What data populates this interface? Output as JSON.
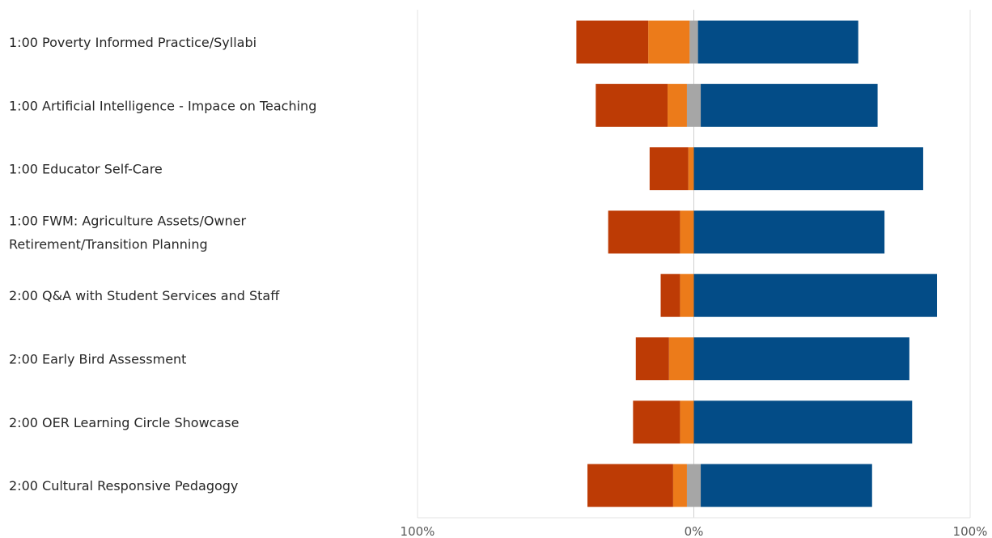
{
  "chart_data": {
    "type": "bar",
    "orientation": "horizontal",
    "stacked": true,
    "diverging": true,
    "categories": [
      [
        "1:00  Poverty Informed Practice/Syllabi"
      ],
      [
        "1:00 Artificial Intelligence - Impace on Teaching"
      ],
      [
        "1:00 Educator Self-Care"
      ],
      [
        "1:00 FWM:  Agriculture Assets/Owner",
        "Retirement/Transition Planning"
      ],
      [
        "2:00 Q&A with Student Services and Staff"
      ],
      [
        "2:00 Early Bird Assessment"
      ],
      [
        "2:00 OER Learning Circle Showcase"
      ],
      [
        "2:00 Cultural Responsive Pedagogy"
      ]
    ],
    "series": [
      {
        "side": "negative",
        "color": "#BD3B05",
        "values": [
          26,
          26,
          14,
          26,
          7,
          12,
          17,
          31
        ]
      },
      {
        "side": "negative",
        "color": "#EC7B1A",
        "values": [
          15,
          7,
          2,
          5,
          5,
          9,
          5,
          5
        ]
      },
      {
        "side": "neutral",
        "color": "#A6A6A6",
        "values": [
          3,
          5,
          0,
          0,
          0,
          0,
          0,
          5
        ]
      },
      {
        "side": "positive",
        "color": "#034C87",
        "values": [
          58,
          64,
          83,
          69,
          88,
          78,
          79,
          62
        ]
      }
    ],
    "xlim": [
      -100,
      100
    ],
    "x_ticks": [
      {
        "value": -100,
        "label": "100%"
      },
      {
        "value": 0,
        "label": "0%"
      },
      {
        "value": 100,
        "label": "100%"
      }
    ],
    "grid": "vertical lines at -100, 0, 100",
    "legend": "none",
    "title": "",
    "xlabel": "",
    "ylabel": ""
  }
}
